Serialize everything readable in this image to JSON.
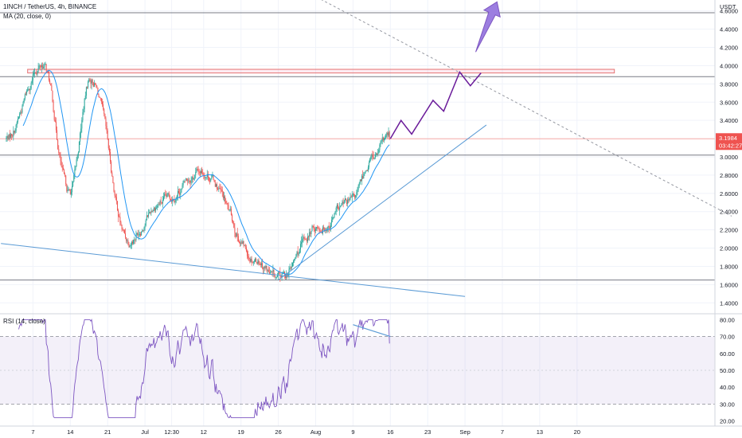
{
  "header": {
    "symbol_line": "1INCH / TetherUS, 4h, BINANCE",
    "ma_line": "MA (20, close, 0)",
    "rsi_line": "RSI (14, close)"
  },
  "price_axis": {
    "currency": "USDT",
    "ticks": [
      "4.6000",
      "4.4000",
      "4.2000",
      "4.0000",
      "3.8000",
      "3.6000",
      "3.4000",
      "3.2000",
      "3.0000",
      "2.8000",
      "2.6000",
      "2.4000",
      "2.2000",
      "2.0000",
      "1.8000",
      "1.6000",
      "1.4000"
    ],
    "tick_values": [
      4.6,
      4.4,
      4.2,
      4.0,
      3.8,
      3.6,
      3.4,
      3.2,
      3.0,
      2.8,
      2.6,
      2.4,
      2.2,
      2.0,
      1.8,
      1.6,
      1.4
    ],
    "ylim": [
      1.28,
      4.72
    ]
  },
  "rsi_axis": {
    "ticks": [
      "80.00",
      "70.00",
      "60.00",
      "50.00",
      "40.00",
      "30.00",
      "20.00"
    ],
    "tick_values": [
      80,
      70,
      60,
      50,
      40,
      30,
      20
    ],
    "ylim": [
      17,
      83
    ],
    "upper_band": 70,
    "lower_band": 30,
    "mid_line": 50
  },
  "time_axis": {
    "labels": [
      "7",
      "14",
      "21",
      "Jul",
      "12:30",
      "12",
      "19",
      "26",
      "Aug",
      "9",
      "16",
      "23",
      "Sep",
      "7",
      "13",
      "20"
    ],
    "positions": [
      2,
      9,
      16,
      23,
      28,
      34,
      41,
      48,
      55,
      62,
      69,
      76,
      83,
      90,
      97,
      104
    ]
  },
  "price_badge": {
    "price": "3.1984",
    "price_value": 3.1984,
    "countdown": "03:42:27",
    "color": "#ef5350"
  },
  "colors": {
    "up": "#26a69a",
    "down": "#ef5350",
    "ma": "#2196f3",
    "rsi": "#7e57c2",
    "projection": "#6a1b9a",
    "trendline": "#5b9bd5"
  },
  "chart_data": {
    "type": "candlestick",
    "x_unit": "days since the first candle",
    "series": [
      {
        "name": "1INCH / TetherUS",
        "kind": "candles",
        "count": 432,
        "x_start": -3,
        "x_end": 69,
        "start_price": 3.2,
        "end_price": 3.1984
      },
      {
        "name": "MA (20, close, 0)",
        "kind": "line",
        "window": 20
      },
      {
        "name": "RSI (14, close)",
        "kind": "line",
        "period": 14
      }
    ],
    "key_points": [
      {
        "x": -3,
        "price": 3.2
      },
      {
        "x": 4,
        "price": 4.02
      },
      {
        "x": 9,
        "price": 2.6
      },
      {
        "x": 13,
        "price": 3.85
      },
      {
        "x": 20,
        "price": 2.1
      },
      {
        "x": 26,
        "price": 2.5
      },
      {
        "x": 34,
        "price": 2.85
      },
      {
        "x": 44,
        "price": 1.9
      },
      {
        "x": 48,
        "price": 1.65
      },
      {
        "x": 56,
        "price": 2.25
      },
      {
        "x": 62,
        "price": 2.5
      },
      {
        "x": 66,
        "price": 3.0
      },
      {
        "x": 69,
        "price": 3.1984
      }
    ],
    "horizontal_levels": [
      {
        "price": 4.58,
        "color": "#787b86"
      },
      {
        "price": 3.88,
        "color": "#787b86"
      },
      {
        "price": 3.02,
        "color": "#787b86"
      },
      {
        "price": 1.65,
        "color": "#787b86"
      },
      {
        "price": 3.1984,
        "color": "#f7a9a7"
      }
    ],
    "resistance_zone": {
      "from": 3.92,
      "to": 3.96,
      "x_start": 1,
      "x_end": 111
    },
    "trendlines": [
      {
        "style": "solid",
        "from": {
          "x": -4,
          "price": 2.05
        },
        "to": {
          "x": 83,
          "price": 1.47
        }
      },
      {
        "style": "solid",
        "from": {
          "x": 48,
          "price": 1.65
        },
        "to": {
          "x": 87,
          "price": 3.35
        }
      },
      {
        "style": "dashed",
        "from": {
          "x": 52,
          "price": 4.85
        },
        "to": {
          "x": 133,
          "price": 2.35
        }
      }
    ],
    "projection_path": [
      {
        "x": 69,
        "price": 3.2
      },
      {
        "x": 71,
        "price": 3.4
      },
      {
        "x": 73,
        "price": 3.25
      },
      {
        "x": 77,
        "price": 3.62
      },
      {
        "x": 79,
        "price": 3.5
      },
      {
        "x": 82,
        "price": 3.93
      },
      {
        "x": 84,
        "price": 3.78
      },
      {
        "x": 86,
        "price": 3.92
      }
    ],
    "projection_arrow": {
      "from": {
        "x": 85,
        "price": 4.15
      },
      "to": {
        "x": 89,
        "price": 4.7
      }
    },
    "rsi_divergence_line": {
      "from": {
        "x": 62,
        "price": 77
      },
      "to": {
        "x": 69,
        "price": 70
      }
    }
  }
}
